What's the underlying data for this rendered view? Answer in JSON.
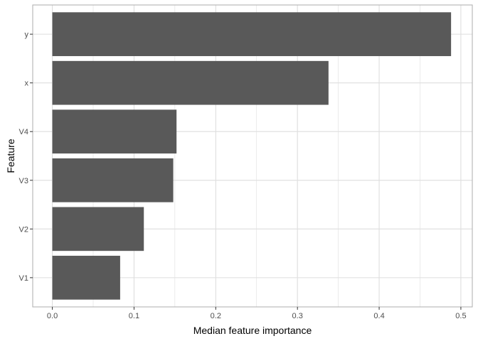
{
  "chart_data": {
    "type": "bar",
    "orientation": "horizontal",
    "categories": [
      "V1",
      "V2",
      "V3",
      "V4",
      "x",
      "y"
    ],
    "values": [
      0.083,
      0.112,
      0.148,
      0.152,
      0.338,
      0.488
    ],
    "xlabel": "Median feature importance",
    "ylabel": "Feature",
    "xlim": [
      -0.024,
      0.514
    ],
    "xticks": [
      0.0,
      0.1,
      0.2,
      0.3,
      0.4,
      0.5
    ],
    "xtick_labels": [
      "0.0",
      "0.1",
      "0.2",
      "0.3",
      "0.4",
      "0.5"
    ],
    "grid": true,
    "legend": "none",
    "bar_color": "#595959",
    "grid_color": "#dedede",
    "panel_border_color": "#b3b3b3"
  }
}
